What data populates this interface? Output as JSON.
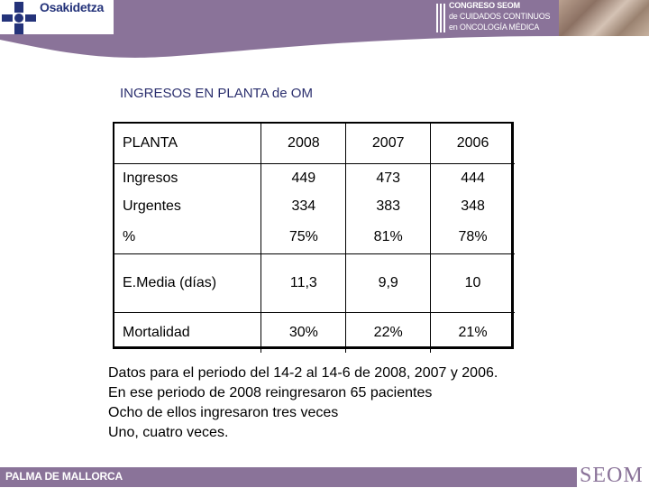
{
  "header": {
    "logo_text": "Osakidetza",
    "congreso_line1": "CONGRESO SEOM",
    "congreso_line2": "de CUIDADOS CONTINUOS",
    "congreso_line3": "en ONCOLOGÍA MÉDICA"
  },
  "title": "INGRESOS EN PLANTA de OM",
  "table": {
    "header": [
      "PLANTA",
      "2008",
      "2007",
      "2006"
    ],
    "rows": [
      [
        "Ingresos",
        "449",
        "473",
        "444"
      ],
      [
        "Urgentes",
        "334",
        "383",
        "348"
      ],
      [
        "%",
        "75%",
        "81%",
        "78%"
      ],
      [
        "E.Media (días)",
        "11,3",
        "9,9",
        "10"
      ],
      [
        "Mortalidad",
        "30%",
        "22%",
        "21%"
      ]
    ]
  },
  "notes": [
    "Datos para el periodo del 14-2 al 14-6 de 2008, 2007 y 2006.",
    "En ese periodo de 2008 reingresaron 65 pacientes",
    "Ocho de ellos ingresaron tres veces",
    "Uno, cuatro veces."
  ],
  "footer": {
    "location": "PALMA DE MALLORCA",
    "brand": "SEOM"
  },
  "colors": {
    "accent": "#8a7399",
    "title": "#2b2f6e",
    "logo_blue": "#24337a"
  }
}
